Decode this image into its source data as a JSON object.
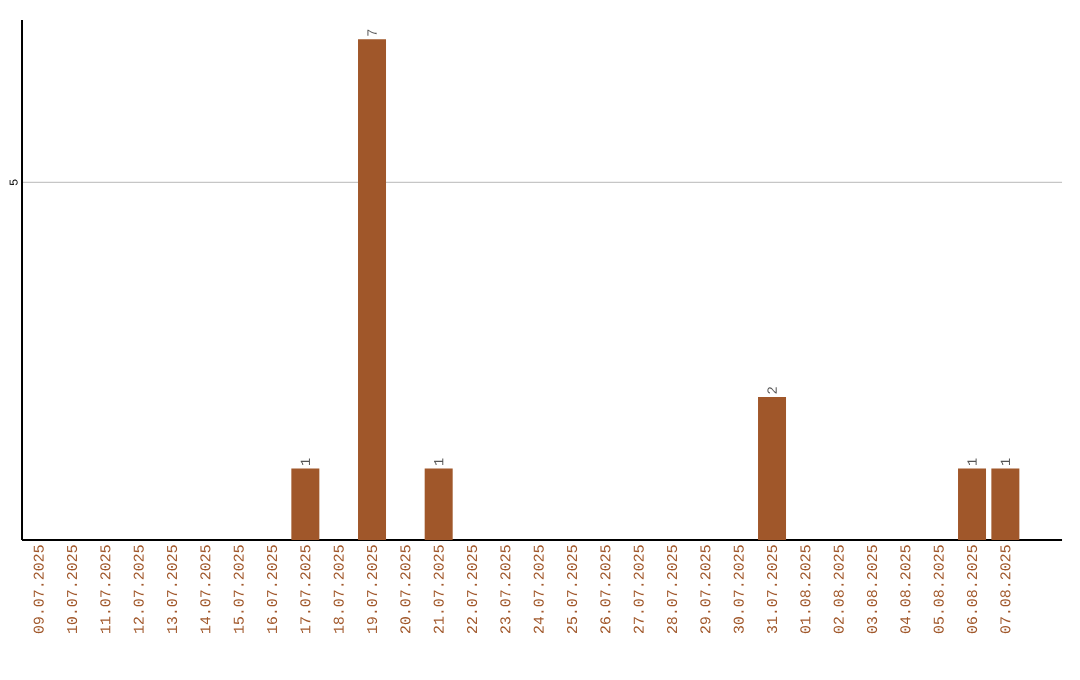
{
  "chart_data": {
    "type": "bar",
    "categories": [
      "09.07.2025",
      "10.07.2025",
      "11.07.2025",
      "12.07.2025",
      "13.07.2025",
      "14.07.2025",
      "15.07.2025",
      "16.07.2025",
      "17.07.2025",
      "18.07.2025",
      "19.07.2025",
      "20.07.2025",
      "21.07.2025",
      "22.07.2025",
      "23.07.2025",
      "24.07.2025",
      "25.07.2025",
      "26.07.2025",
      "27.07.2025",
      "28.07.2025",
      "29.07.2025",
      "30.07.2025",
      "31.07.2025",
      "01.08.2025",
      "02.08.2025",
      "03.08.2025",
      "04.08.2025",
      "05.08.2025",
      "06.08.2025",
      "07.08.2025"
    ],
    "values": [
      0,
      0,
      0,
      0,
      0,
      0,
      0,
      0,
      1,
      0,
      7,
      0,
      1,
      0,
      0,
      0,
      0,
      0,
      0,
      0,
      0,
      0,
      2,
      0,
      0,
      0,
      0,
      0,
      1,
      1
    ],
    "value_labels": [
      null,
      null,
      null,
      null,
      null,
      null,
      null,
      null,
      "1",
      null,
      "7",
      null,
      "1",
      null,
      null,
      null,
      null,
      null,
      null,
      null,
      null,
      null,
      "2",
      null,
      null,
      null,
      null,
      null,
      "1",
      "1"
    ],
    "color": "#a0572a",
    "ylim": [
      0,
      7.27
    ],
    "yticks": [
      5
    ],
    "grid": "y"
  }
}
